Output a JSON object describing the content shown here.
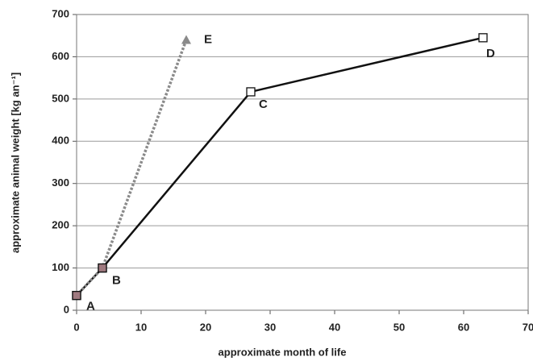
{
  "chart_data": {
    "type": "line",
    "x_label": "approximate month of life",
    "y_label": "approximate animal weight [kg an⁻¹]",
    "xlim": [
      0,
      70
    ],
    "xticks": [
      0,
      10,
      20,
      30,
      40,
      50,
      60,
      70
    ],
    "ylim": [
      0,
      700
    ],
    "yticks": [
      0,
      100,
      200,
      300,
      400,
      500,
      600,
      700
    ],
    "grid": true,
    "series": [
      {
        "color": "#111111",
        "marker": "square",
        "marker_color": "#ffffff",
        "dashed": false,
        "x": [
          0,
          4,
          27,
          63
        ],
        "values": [
          35,
          100,
          517,
          645
        ],
        "point_labels": [
          "A",
          "B",
          "C",
          "D"
        ]
      },
      {
        "color": "#8a8a8a",
        "marker": "triangle",
        "marker_color": "#a07a80",
        "dashed": true,
        "x": [
          0,
          4,
          17
        ],
        "values": [
          35,
          100,
          640
        ],
        "point_labels": [
          null,
          null,
          "E"
        ]
      }
    ]
  }
}
